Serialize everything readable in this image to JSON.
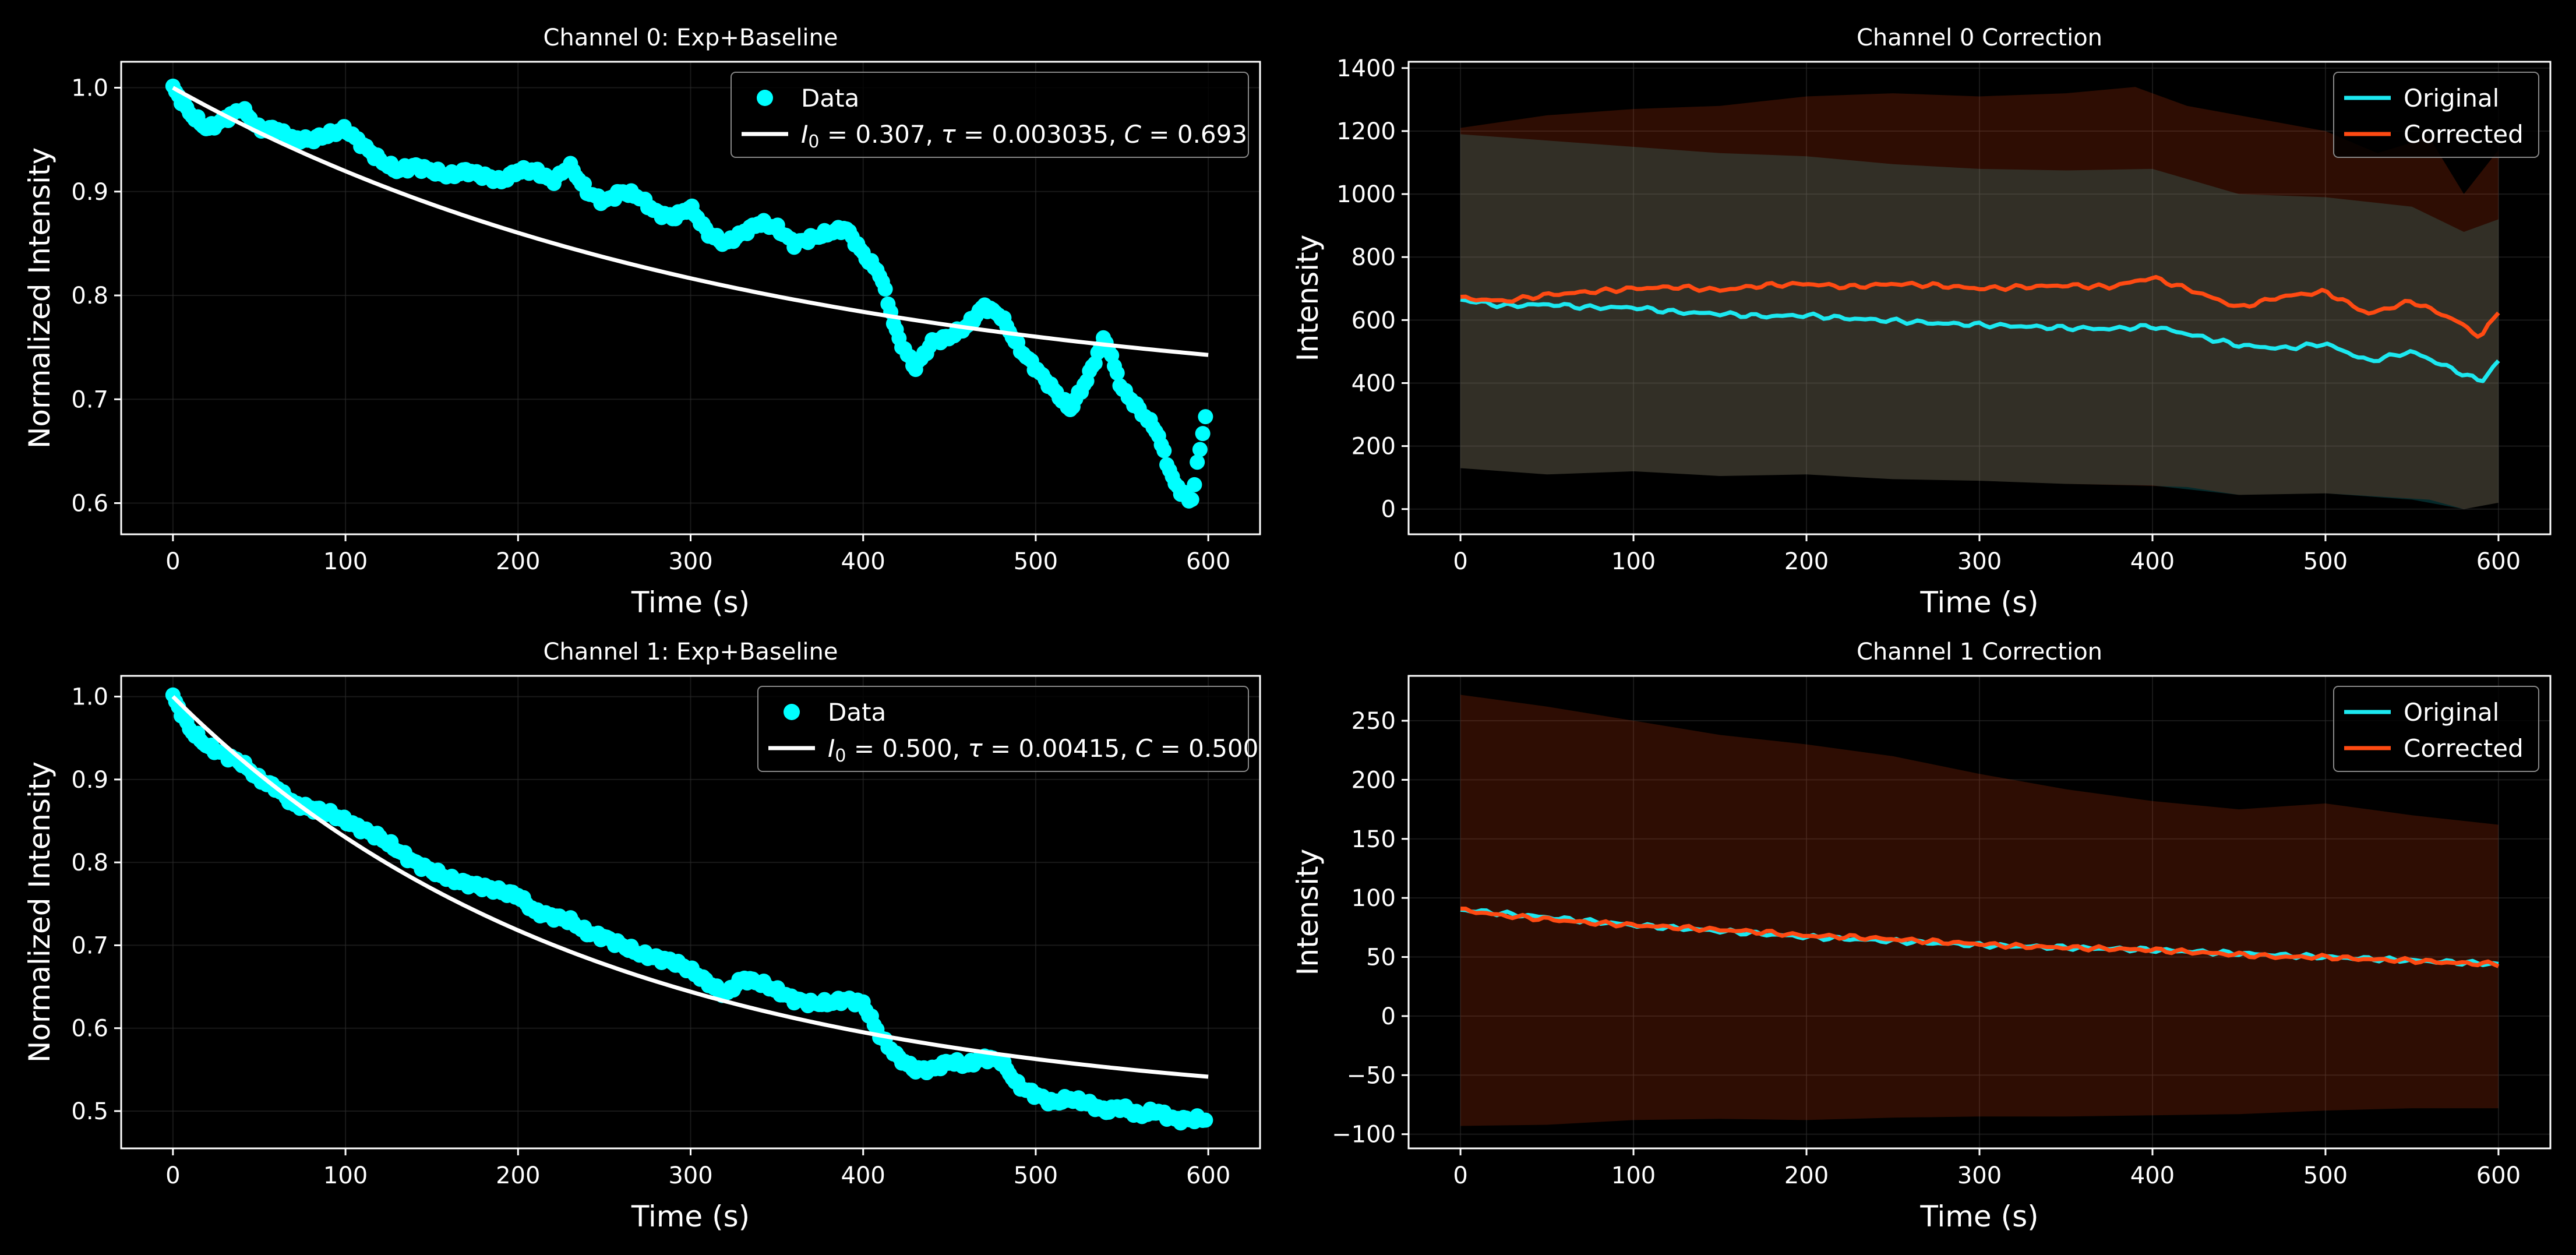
{
  "figure": {
    "background": "#000000",
    "text_color": "#ffffff",
    "grid_color": "#2a2a2a"
  },
  "chart_data": [
    {
      "type": "scatter",
      "title": "Channel 0: Exp+Baseline",
      "xlabel": "Time (s)",
      "ylabel": "Normalized Intensity",
      "xlim": [
        -30,
        630
      ],
      "ylim": [
        0.57,
        1.025
      ],
      "xticks": [
        0,
        100,
        200,
        300,
        400,
        500,
        600
      ],
      "yticks": [
        0.6,
        0.7,
        0.8,
        0.9,
        1.0
      ],
      "ytick_labels": [
        "0.6",
        "0.7",
        "0.8",
        "0.9",
        "1.0"
      ],
      "grid": true,
      "legend_position": "top-right",
      "series": [
        {
          "name": "Data",
          "kind": "scatter",
          "color": "#00ffff",
          "x": [
            0,
            10,
            20,
            30,
            40,
            50,
            60,
            70,
            80,
            90,
            100,
            110,
            120,
            130,
            140,
            150,
            160,
            170,
            180,
            190,
            200,
            210,
            220,
            230,
            240,
            250,
            260,
            270,
            280,
            290,
            300,
            310,
            320,
            330,
            340,
            350,
            360,
            370,
            380,
            390,
            400,
            410,
            420,
            430,
            440,
            450,
            460,
            470,
            480,
            490,
            500,
            510,
            520,
            530,
            540,
            550,
            560,
            570,
            580,
            590,
            600
          ],
          "y": [
            1.0,
            0.975,
            0.96,
            0.97,
            0.98,
            0.96,
            0.96,
            0.95,
            0.95,
            0.955,
            0.96,
            0.945,
            0.93,
            0.92,
            0.925,
            0.92,
            0.915,
            0.92,
            0.915,
            0.91,
            0.92,
            0.92,
            0.91,
            0.925,
            0.9,
            0.89,
            0.9,
            0.895,
            0.88,
            0.875,
            0.885,
            0.86,
            0.85,
            0.86,
            0.87,
            0.865,
            0.85,
            0.855,
            0.86,
            0.865,
            0.84,
            0.82,
            0.76,
            0.73,
            0.755,
            0.76,
            0.77,
            0.79,
            0.78,
            0.75,
            0.73,
            0.71,
            0.69,
            0.72,
            0.76,
            0.71,
            0.69,
            0.67,
            0.62,
            0.6,
            0.7
          ]
        },
        {
          "name": "$I_0 = 0.307, \\tau = 0.003035, C = 0.693$",
          "label_parts": [
            "I",
            "0",
            " = 0.307, ",
            "τ",
            " = 0.003035, ",
            "C",
            " = 0.693"
          ],
          "kind": "line",
          "color": "#ffffff",
          "model": {
            "I0": 0.307,
            "tau": 0.003035,
            "C": 0.693,
            "xmin": 0,
            "xmax": 600
          }
        }
      ]
    },
    {
      "type": "area",
      "title": "Channel 0 Correction",
      "xlabel": "Time (s)",
      "ylabel": "Intensity",
      "xlim": [
        -30,
        630
      ],
      "ylim": [
        -80,
        1420
      ],
      "xticks": [
        0,
        100,
        200,
        300,
        400,
        500,
        600
      ],
      "yticks": [
        0,
        200,
        400,
        600,
        800,
        1000,
        1200,
        1400
      ],
      "ytick_labels": [
        "0",
        "200",
        "400",
        "600",
        "800",
        "1000",
        "1200",
        "1400"
      ],
      "grid": true,
      "legend_position": "top-right",
      "series": [
        {
          "name": "Original",
          "color": "#1ce8f0",
          "x": [
            0,
            25,
            50,
            75,
            100,
            125,
            150,
            175,
            200,
            225,
            250,
            275,
            300,
            325,
            350,
            375,
            400,
            425,
            450,
            475,
            500,
            525,
            550,
            575,
            590,
            600
          ],
          "y": [
            665,
            645,
            650,
            640,
            640,
            625,
            620,
            612,
            615,
            605,
            598,
            590,
            585,
            580,
            575,
            572,
            580,
            550,
            520,
            510,
            525,
            470,
            500,
            440,
            405,
            470
          ],
          "band": [
            {
              "x": 0,
              "low": 130,
              "high": 1190
            },
            {
              "x": 50,
              "low": 110,
              "high": 1170
            },
            {
              "x": 100,
              "low": 120,
              "high": 1150
            },
            {
              "x": 150,
              "low": 105,
              "high": 1130
            },
            {
              "x": 200,
              "low": 110,
              "high": 1120
            },
            {
              "x": 250,
              "low": 95,
              "high": 1095
            },
            {
              "x": 300,
              "low": 90,
              "high": 1080
            },
            {
              "x": 350,
              "low": 80,
              "high": 1075
            },
            {
              "x": 400,
              "low": 75,
              "high": 1080
            },
            {
              "x": 450,
              "low": 45,
              "high": 1000
            },
            {
              "x": 500,
              "low": 50,
              "high": 990
            },
            {
              "x": 550,
              "low": 30,
              "high": 960
            },
            {
              "x": 580,
              "low": 0,
              "high": 880
            },
            {
              "x": 600,
              "low": 20,
              "high": 920
            }
          ]
        },
        {
          "name": "Corrected",
          "color": "#ff4a12",
          "x": [
            0,
            25,
            50,
            75,
            100,
            125,
            150,
            175,
            200,
            225,
            250,
            275,
            300,
            325,
            350,
            375,
            400,
            425,
            450,
            475,
            500,
            525,
            550,
            575,
            590,
            600
          ],
          "y": [
            670,
            660,
            680,
            690,
            700,
            705,
            695,
            710,
            715,
            705,
            715,
            710,
            700,
            705,
            710,
            705,
            735,
            690,
            640,
            675,
            690,
            620,
            660,
            600,
            545,
            630
          ],
          "band": [
            {
              "x": 0,
              "low": 130,
              "high": 1210
            },
            {
              "x": 50,
              "low": 110,
              "high": 1250
            },
            {
              "x": 100,
              "low": 120,
              "high": 1270
            },
            {
              "x": 150,
              "low": 105,
              "high": 1280
            },
            {
              "x": 200,
              "low": 110,
              "high": 1310
            },
            {
              "x": 250,
              "low": 95,
              "high": 1320
            },
            {
              "x": 300,
              "low": 90,
              "high": 1310
            },
            {
              "x": 350,
              "low": 80,
              "high": 1320
            },
            {
              "x": 390,
              "low": 75,
              "high": 1340
            },
            {
              "x": 420,
              "low": 70,
              "high": 1280
            },
            {
              "x": 450,
              "low": 45,
              "high": 1250
            },
            {
              "x": 500,
              "low": 50,
              "high": 1200
            },
            {
              "x": 530,
              "low": 40,
              "high": 1130
            },
            {
              "x": 560,
              "low": 30,
              "high": 1180
            },
            {
              "x": 580,
              "low": 0,
              "high": 1000
            },
            {
              "x": 600,
              "low": 20,
              "high": 1140
            }
          ]
        }
      ]
    },
    {
      "type": "scatter",
      "title": "Channel 1: Exp+Baseline",
      "xlabel": "Time (s)",
      "ylabel": "Normalized Intensity",
      "xlim": [
        -30,
        630
      ],
      "ylim": [
        0.455,
        1.025
      ],
      "xticks": [
        0,
        100,
        200,
        300,
        400,
        500,
        600
      ],
      "yticks": [
        0.5,
        0.6,
        0.7,
        0.8,
        0.9,
        1.0
      ],
      "ytick_labels": [
        "0.5",
        "0.6",
        "0.7",
        "0.8",
        "0.9",
        "1.0"
      ],
      "grid": true,
      "legend_position": "top-right",
      "series": [
        {
          "name": "Data",
          "kind": "scatter",
          "color": "#00ffff",
          "x": [
            0,
            10,
            20,
            30,
            40,
            50,
            60,
            70,
            80,
            90,
            100,
            110,
            120,
            130,
            140,
            150,
            160,
            170,
            180,
            190,
            200,
            210,
            220,
            230,
            240,
            250,
            260,
            270,
            280,
            290,
            300,
            310,
            320,
            330,
            340,
            350,
            360,
            370,
            380,
            390,
            400,
            410,
            420,
            430,
            440,
            450,
            460,
            470,
            480,
            490,
            500,
            510,
            520,
            530,
            540,
            550,
            560,
            570,
            580,
            590,
            600
          ],
          "y": [
            1.0,
            0.96,
            0.94,
            0.93,
            0.92,
            0.9,
            0.89,
            0.87,
            0.865,
            0.86,
            0.85,
            0.84,
            0.83,
            0.815,
            0.8,
            0.79,
            0.78,
            0.775,
            0.77,
            0.765,
            0.76,
            0.74,
            0.735,
            0.73,
            0.715,
            0.71,
            0.7,
            0.69,
            0.685,
            0.68,
            0.67,
            0.655,
            0.64,
            0.66,
            0.655,
            0.645,
            0.635,
            0.63,
            0.63,
            0.635,
            0.63,
            0.59,
            0.565,
            0.55,
            0.55,
            0.56,
            0.555,
            0.565,
            0.56,
            0.53,
            0.52,
            0.51,
            0.515,
            0.51,
            0.5,
            0.505,
            0.495,
            0.5,
            0.49,
            0.49,
            0.49
          ]
        },
        {
          "name": "$I_0 = 0.500, \\tau = 0.00415, C = 0.500$",
          "label_parts": [
            "I",
            "0",
            " = 0.500, ",
            "τ",
            " = 0.00415, ",
            "C",
            " = 0.500"
          ],
          "kind": "line",
          "color": "#ffffff",
          "model": {
            "I0": 0.5,
            "tau": 0.00415,
            "C": 0.5,
            "xmin": 0,
            "xmax": 600
          }
        }
      ]
    },
    {
      "type": "area",
      "title": "Channel 1 Correction",
      "xlabel": "Time (s)",
      "ylabel": "Intensity",
      "xlim": [
        -30,
        630
      ],
      "ylim": [
        -112,
        288
      ],
      "xticks": [
        0,
        100,
        200,
        300,
        400,
        500,
        600
      ],
      "yticks": [
        -100,
        -50,
        0,
        50,
        100,
        150,
        200,
        250
      ],
      "ytick_labels": [
        "−100",
        "−50",
        "0",
        "50",
        "100",
        "150",
        "200",
        "250"
      ],
      "grid": true,
      "legend_position": "top-right",
      "series": [
        {
          "name": "Original",
          "color": "#1ce8f0",
          "x": [
            0,
            100,
            200,
            300,
            400,
            500,
            600
          ],
          "y": [
            90,
            77,
            67,
            60,
            56,
            50,
            44
          ],
          "band": []
        },
        {
          "name": "Corrected",
          "color": "#ff4a12",
          "x": [
            0,
            25,
            50,
            75,
            100,
            125,
            150,
            175,
            200,
            225,
            250,
            275,
            300,
            325,
            350,
            375,
            400,
            425,
            450,
            475,
            500,
            525,
            550,
            575,
            600
          ],
          "y": [
            90,
            85,
            82,
            79,
            77,
            75,
            73,
            71,
            68,
            67,
            65,
            63,
            61,
            59,
            58,
            57,
            56,
            54,
            52,
            50,
            50,
            48,
            47,
            45,
            44
          ],
          "band": [
            {
              "x": 0,
              "low": -93,
              "high": 272
            },
            {
              "x": 50,
              "low": -92,
              "high": 262
            },
            {
              "x": 100,
              "low": -88,
              "high": 250
            },
            {
              "x": 150,
              "low": -87,
              "high": 238
            },
            {
              "x": 200,
              "low": -88,
              "high": 230
            },
            {
              "x": 250,
              "low": -86,
              "high": 220
            },
            {
              "x": 300,
              "low": -85,
              "high": 205
            },
            {
              "x": 350,
              "low": -85,
              "high": 192
            },
            {
              "x": 400,
              "low": -84,
              "high": 182
            },
            {
              "x": 450,
              "low": -83,
              "high": 175
            },
            {
              "x": 500,
              "low": -80,
              "high": 180
            },
            {
              "x": 550,
              "low": -78,
              "high": 170
            },
            {
              "x": 600,
              "low": -78,
              "high": 162
            }
          ]
        }
      ]
    }
  ]
}
